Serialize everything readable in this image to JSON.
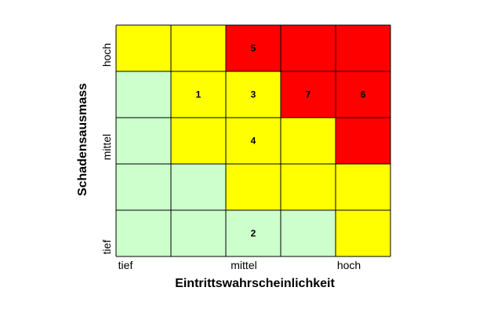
{
  "chart_data": {
    "type": "heatmap",
    "xlabel": "Eintrittswahrscheinlichkeit",
    "ylabel": "Schadensausmass",
    "x_ticks": [
      {
        "label": "tief",
        "index": 0
      },
      {
        "label": "mittel",
        "index": 2
      },
      {
        "label": "hoch",
        "index": 4
      }
    ],
    "y_ticks": [
      {
        "label": "tief",
        "index": 0
      },
      {
        "label": "mittel",
        "index": 2
      },
      {
        "label": "hoch",
        "index": 4
      }
    ],
    "rows": 5,
    "cols": 5,
    "colors": {
      "low": "#ccffcc",
      "medium": "#ffff00",
      "high": "#ff0000",
      "grid": "#000000"
    },
    "grid_top_to_bottom": [
      [
        "medium",
        "medium",
        "high",
        "high",
        "high"
      ],
      [
        "low",
        "medium",
        "medium",
        "high",
        "high"
      ],
      [
        "low",
        "medium",
        "medium",
        "medium",
        "high"
      ],
      [
        "low",
        "low",
        "medium",
        "medium",
        "medium"
      ],
      [
        "low",
        "low",
        "low",
        "low",
        "medium"
      ]
    ],
    "items": [
      {
        "label": "5",
        "col": 2,
        "row": 0
      },
      {
        "label": "1",
        "col": 1,
        "row": 1
      },
      {
        "label": "3",
        "col": 2,
        "row": 1
      },
      {
        "label": "7",
        "col": 3,
        "row": 1
      },
      {
        "label": "6",
        "col": 4,
        "row": 1
      },
      {
        "label": "4",
        "col": 2,
        "row": 2
      },
      {
        "label": "2",
        "col": 2,
        "row": 4
      }
    ]
  }
}
